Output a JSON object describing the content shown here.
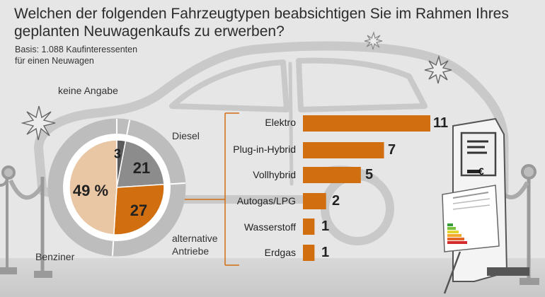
{
  "title_line1": "Welchen der folgenden Fahrzeugtypen beabsichtigen Sie im Rahmen Ihres",
  "title_line2": "geplanten Neuwagenkaufs zu erwerben?",
  "basis_line1": "Basis: 1.088 Kaufinteressenten",
  "basis_line2": "für einen Neuwagen",
  "price_tag": "€",
  "chart_data": [
    {
      "type": "pie",
      "slices": [
        {
          "name": "keine Angabe",
          "value": 3,
          "label": "3",
          "color": "#5b5b5b"
        },
        {
          "name": "Diesel",
          "value": 21,
          "label": "21",
          "color": "#8c8c8c"
        },
        {
          "name": "alternative Antriebe",
          "value": 27,
          "label": "27",
          "color": "#d16f10"
        },
        {
          "name": "Benziner",
          "value": 49,
          "label": "49 %",
          "color": "#e9c6a4"
        }
      ],
      "ring_color": "#bdbdbd"
    },
    {
      "type": "bar",
      "orientation": "horizontal",
      "categories": [
        "Elektro",
        "Plug-in-Hybrid",
        "Vollhybrid",
        "Autogas/LPG",
        "Wasserstoff",
        "Erdgas"
      ],
      "values": [
        11,
        7,
        5,
        2,
        1,
        1
      ],
      "labels": [
        "11",
        "7",
        "5",
        "2",
        "1",
        "1"
      ],
      "color": "#d16f10"
    }
  ]
}
